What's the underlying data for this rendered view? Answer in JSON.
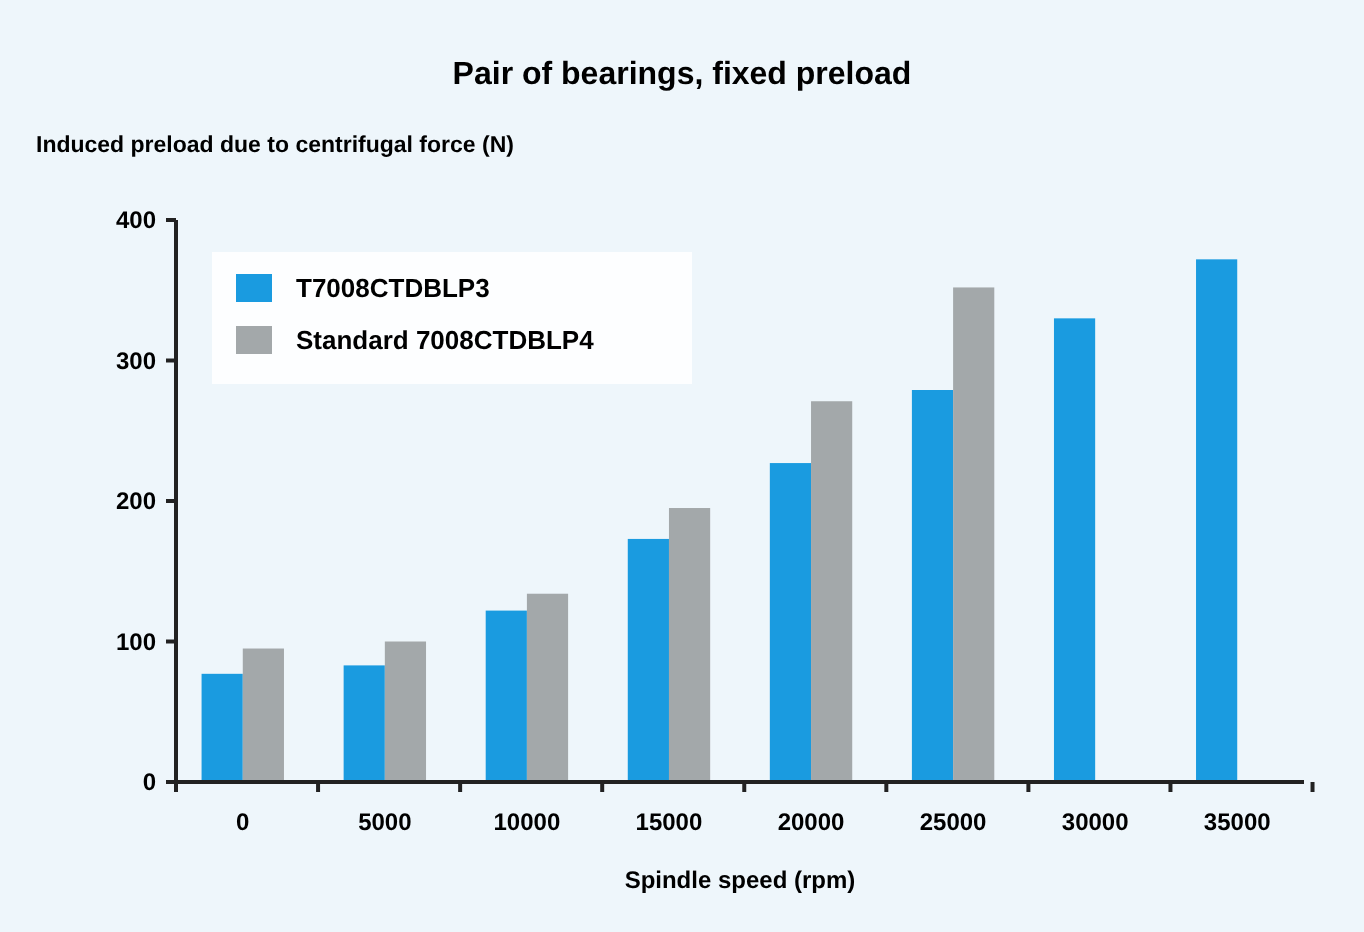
{
  "chart_data": {
    "type": "bar",
    "title": "Pair of bearings, fixed preload",
    "ylabel": "Induced preload due to centrifugal force (N)",
    "xlabel": "Spindle speed (rpm)",
    "categories": [
      "0",
      "5000",
      "10000",
      "15000",
      "20000",
      "25000",
      "30000",
      "35000"
    ],
    "series": [
      {
        "name": "T7008CTDBLP3",
        "color": "#1a9be0",
        "values": [
          77,
          83,
          122,
          173,
          227,
          279,
          330,
          372
        ]
      },
      {
        "name": "Standard 7008CTDBLP4",
        "color": "#a3a8aa",
        "values": [
          95,
          100,
          134,
          195,
          271,
          352,
          null,
          null
        ]
      }
    ],
    "ylim": [
      0,
      400
    ],
    "yticks": [
      0,
      100,
      200,
      300,
      400
    ],
    "grid": false,
    "legend": "top left"
  }
}
